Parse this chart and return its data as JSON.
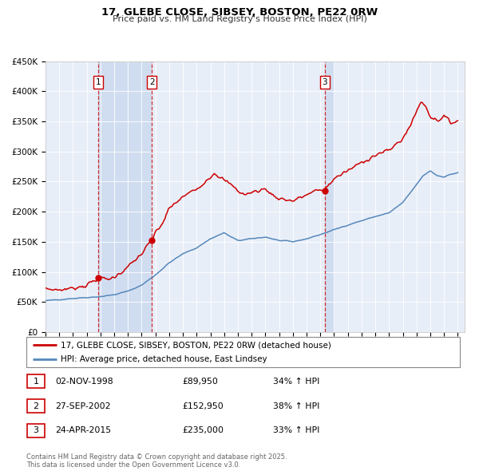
{
  "title": "17, GLEBE CLOSE, SIBSEY, BOSTON, PE22 0RW",
  "subtitle": "Price paid vs. HM Land Registry's House Price Index (HPI)",
  "property_label": "17, GLEBE CLOSE, SIBSEY, BOSTON, PE22 0RW (detached house)",
  "hpi_label": "HPI: Average price, detached house, East Lindsey",
  "property_color": "#cc0000",
  "hpi_color": "#5588bb",
  "bg_color": "#e8eef8",
  "shade_color": "#d0ddf0",
  "grid_color": "#ffffff",
  "transactions": [
    {
      "num": 1,
      "date": "02-NOV-1998",
      "price": 89950,
      "price_str": "£89,950",
      "hpi_pct": "34% ↑ HPI",
      "x_year": 1998.84
    },
    {
      "num": 2,
      "date": "27-SEP-2002",
      "price": 152950,
      "price_str": "£152,950",
      "hpi_pct": "38% ↑ HPI",
      "x_year": 2002.74
    },
    {
      "num": 3,
      "date": "24-APR-2015",
      "price": 235000,
      "price_str": "£235,000",
      "hpi_pct": "33% ↑ HPI",
      "x_year": 2015.32
    }
  ],
  "footer": "Contains HM Land Registry data © Crown copyright and database right 2025.\nThis data is licensed under the Open Government Licence v3.0.",
  "ylim": [
    0,
    450000
  ],
  "yticks": [
    0,
    50000,
    100000,
    150000,
    200000,
    250000,
    300000,
    350000,
    400000,
    450000
  ],
  "ytick_labels": [
    "£0",
    "£50K",
    "£100K",
    "£150K",
    "£200K",
    "£250K",
    "£300K",
    "£350K",
    "£400K",
    "£450K"
  ],
  "xlim_start": 1995,
  "xlim_end": 2025.5
}
